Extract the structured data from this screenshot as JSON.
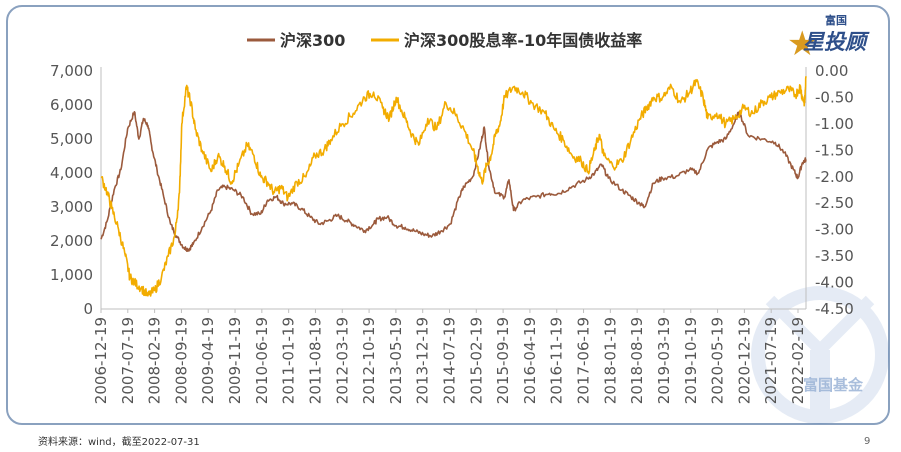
{
  "footer": {
    "source": "资料来源：wind，截至2022-07-31",
    "page_number": "9"
  },
  "logo": {
    "top": "富国",
    "main": "星投顾",
    "watermark": "富国基金"
  },
  "colors": {
    "csi300": "#9b5a3c",
    "spread": "#f2ac00",
    "frame": "#8aa1bf",
    "brand": "#d99a1f"
  },
  "chart_data": {
    "type": "line",
    "title": "",
    "legend": [
      "沪深300",
      "沪深300股息率-10年国债收益率"
    ],
    "x_ticks": [
      "2006-12-19",
      "2007-07-19",
      "2008-02-19",
      "2008-09-19",
      "2009-04-19",
      "2009-11-19",
      "2010-06-19",
      "2011-01-19",
      "2011-08-19",
      "2012-03-19",
      "2012-10-19",
      "2013-05-19",
      "2013-12-19",
      "2014-07-19",
      "2015-02-19",
      "2015-09-19",
      "2016-04-19",
      "2016-11-19",
      "2017-06-19",
      "2018-01-19",
      "2018-08-19",
      "2019-03-19",
      "2019-10-19",
      "2020-05-19",
      "2020-12-19",
      "2021-07-19",
      "2022-02-19"
    ],
    "x_range": [
      2006.96,
      2022.58
    ],
    "y_left": {
      "min": 0,
      "max": 7000,
      "ticks": [
        "0",
        "1,000",
        "2,000",
        "3,000",
        "4,000",
        "5,000",
        "6,000",
        "7,000"
      ]
    },
    "y_right": {
      "min": -4.5,
      "max": 0,
      "ticks": [
        "0.00",
        "-0.50",
        "-1.00",
        "-1.50",
        "-2.00",
        "-2.50",
        "-3.00",
        "-3.50",
        "-4.00",
        "-4.50"
      ]
    },
    "series": [
      {
        "name": "沪深300",
        "axis": "left",
        "x": [
          2006.96,
          2007.1,
          2007.25,
          2007.4,
          2007.55,
          2007.7,
          2007.8,
          2007.9,
          2008.0,
          2008.08,
          2008.2,
          2008.35,
          2008.5,
          2008.65,
          2008.8,
          2008.9,
          2009.0,
          2009.2,
          2009.4,
          2009.55,
          2009.7,
          2009.9,
          2010.1,
          2010.3,
          2010.5,
          2010.65,
          2010.85,
          2011.0,
          2011.2,
          2011.4,
          2011.6,
          2011.8,
          2012.0,
          2012.2,
          2012.4,
          2012.6,
          2012.8,
          2013.0,
          2013.1,
          2013.3,
          2013.5,
          2013.7,
          2013.9,
          2014.1,
          2014.3,
          2014.5,
          2014.7,
          2014.9,
          2015.0,
          2015.2,
          2015.35,
          2015.45,
          2015.55,
          2015.7,
          2015.9,
          2016.0,
          2016.1,
          2016.3,
          2016.6,
          2016.9,
          2017.1,
          2017.4,
          2017.7,
          2017.9,
          2018.05,
          2018.2,
          2018.5,
          2018.7,
          2018.9,
          2019.0,
          2019.2,
          2019.4,
          2019.7,
          2020.0,
          2020.2,
          2020.4,
          2020.6,
          2020.8,
          2021.0,
          2021.1,
          2021.3,
          2021.6,
          2021.9,
          2022.1,
          2022.3,
          2022.4,
          2022.5,
          2022.58
        ],
        "y": [
          2050,
          2600,
          3500,
          4100,
          5300,
          5800,
          5000,
          5600,
          5400,
          4800,
          4100,
          3300,
          2500,
          2100,
          1800,
          1750,
          1900,
          2400,
          2900,
          3500,
          3600,
          3500,
          3300,
          2800,
          2800,
          3200,
          3300,
          3100,
          3100,
          2950,
          2700,
          2500,
          2600,
          2750,
          2600,
          2450,
          2300,
          2500,
          2650,
          2700,
          2450,
          2400,
          2300,
          2200,
          2150,
          2300,
          2500,
          3300,
          3600,
          3900,
          4700,
          5350,
          4200,
          3400,
          3300,
          3800,
          2900,
          3200,
          3300,
          3400,
          3400,
          3600,
          3800,
          4000,
          4250,
          3850,
          3500,
          3300,
          3100,
          3000,
          3700,
          3850,
          3900,
          4100,
          4000,
          4700,
          4900,
          5000,
          5500,
          5800,
          5100,
          5000,
          4900,
          4600,
          4100,
          3850,
          4300,
          4400
        ]
      },
      {
        "name": "沪深300股息率-10年国债收益率",
        "axis": "right",
        "x": [
          2006.96,
          2007.1,
          2007.2,
          2007.35,
          2007.5,
          2007.6,
          2007.7,
          2007.85,
          2008.0,
          2008.15,
          2008.3,
          2008.45,
          2008.6,
          2008.7,
          2008.75,
          2008.85,
          2008.95,
          2009.05,
          2009.2,
          2009.4,
          2009.55,
          2009.7,
          2009.85,
          2010.0,
          2010.2,
          2010.35,
          2010.5,
          2010.65,
          2010.8,
          2010.95,
          2011.1,
          2011.3,
          2011.5,
          2011.7,
          2011.9,
          2012.05,
          2012.3,
          2012.55,
          2012.8,
          2013.0,
          2013.2,
          2013.35,
          2013.5,
          2013.7,
          2013.85,
          2014.0,
          2014.2,
          2014.4,
          2014.6,
          2014.8,
          2015.0,
          2015.2,
          2015.3,
          2015.4,
          2015.5,
          2015.6,
          2015.7,
          2015.8,
          2015.9,
          2016.1,
          2016.3,
          2016.5,
          2016.8,
          2017.0,
          2017.2,
          2017.4,
          2017.6,
          2017.75,
          2017.9,
          2018.0,
          2018.1,
          2018.3,
          2018.5,
          2018.7,
          2018.9,
          2019.05,
          2019.2,
          2019.4,
          2019.6,
          2019.8,
          2020.0,
          2020.15,
          2020.3,
          2020.4,
          2020.6,
          2020.8,
          2021.0,
          2021.2,
          2021.4,
          2021.6,
          2021.8,
          2022.0,
          2022.2,
          2022.35,
          2022.45,
          2022.5,
          2022.55,
          2022.58
        ],
        "y": [
          -2.0,
          -2.3,
          -2.6,
          -3.0,
          -3.5,
          -3.9,
          -4.0,
          -4.1,
          -4.25,
          -4.15,
          -3.9,
          -3.5,
          -3.1,
          -2.3,
          -1.0,
          -0.3,
          -0.6,
          -1.1,
          -1.5,
          -1.9,
          -1.6,
          -1.8,
          -2.1,
          -1.8,
          -1.4,
          -1.6,
          -2.0,
          -2.1,
          -2.3,
          -2.2,
          -2.4,
          -2.1,
          -2.0,
          -1.6,
          -1.5,
          -1.3,
          -1.0,
          -0.8,
          -0.5,
          -0.4,
          -0.7,
          -0.9,
          -0.5,
          -0.9,
          -1.2,
          -1.4,
          -0.9,
          -1.1,
          -0.6,
          -0.8,
          -1.1,
          -1.5,
          -1.8,
          -2.1,
          -1.8,
          -1.6,
          -1.2,
          -1.0,
          -0.5,
          -0.3,
          -0.4,
          -0.6,
          -0.8,
          -1.1,
          -1.3,
          -1.6,
          -1.7,
          -1.9,
          -1.5,
          -1.2,
          -1.6,
          -1.8,
          -1.7,
          -1.3,
          -0.9,
          -0.7,
          -0.5,
          -0.5,
          -0.3,
          -0.6,
          -0.4,
          -0.2,
          -0.5,
          -0.9,
          -0.8,
          -1.0,
          -0.9,
          -0.7,
          -0.8,
          -0.6,
          -0.5,
          -0.4,
          -0.35,
          -0.45,
          -0.3,
          -0.5,
          -0.6,
          -0.1
        ]
      }
    ]
  }
}
